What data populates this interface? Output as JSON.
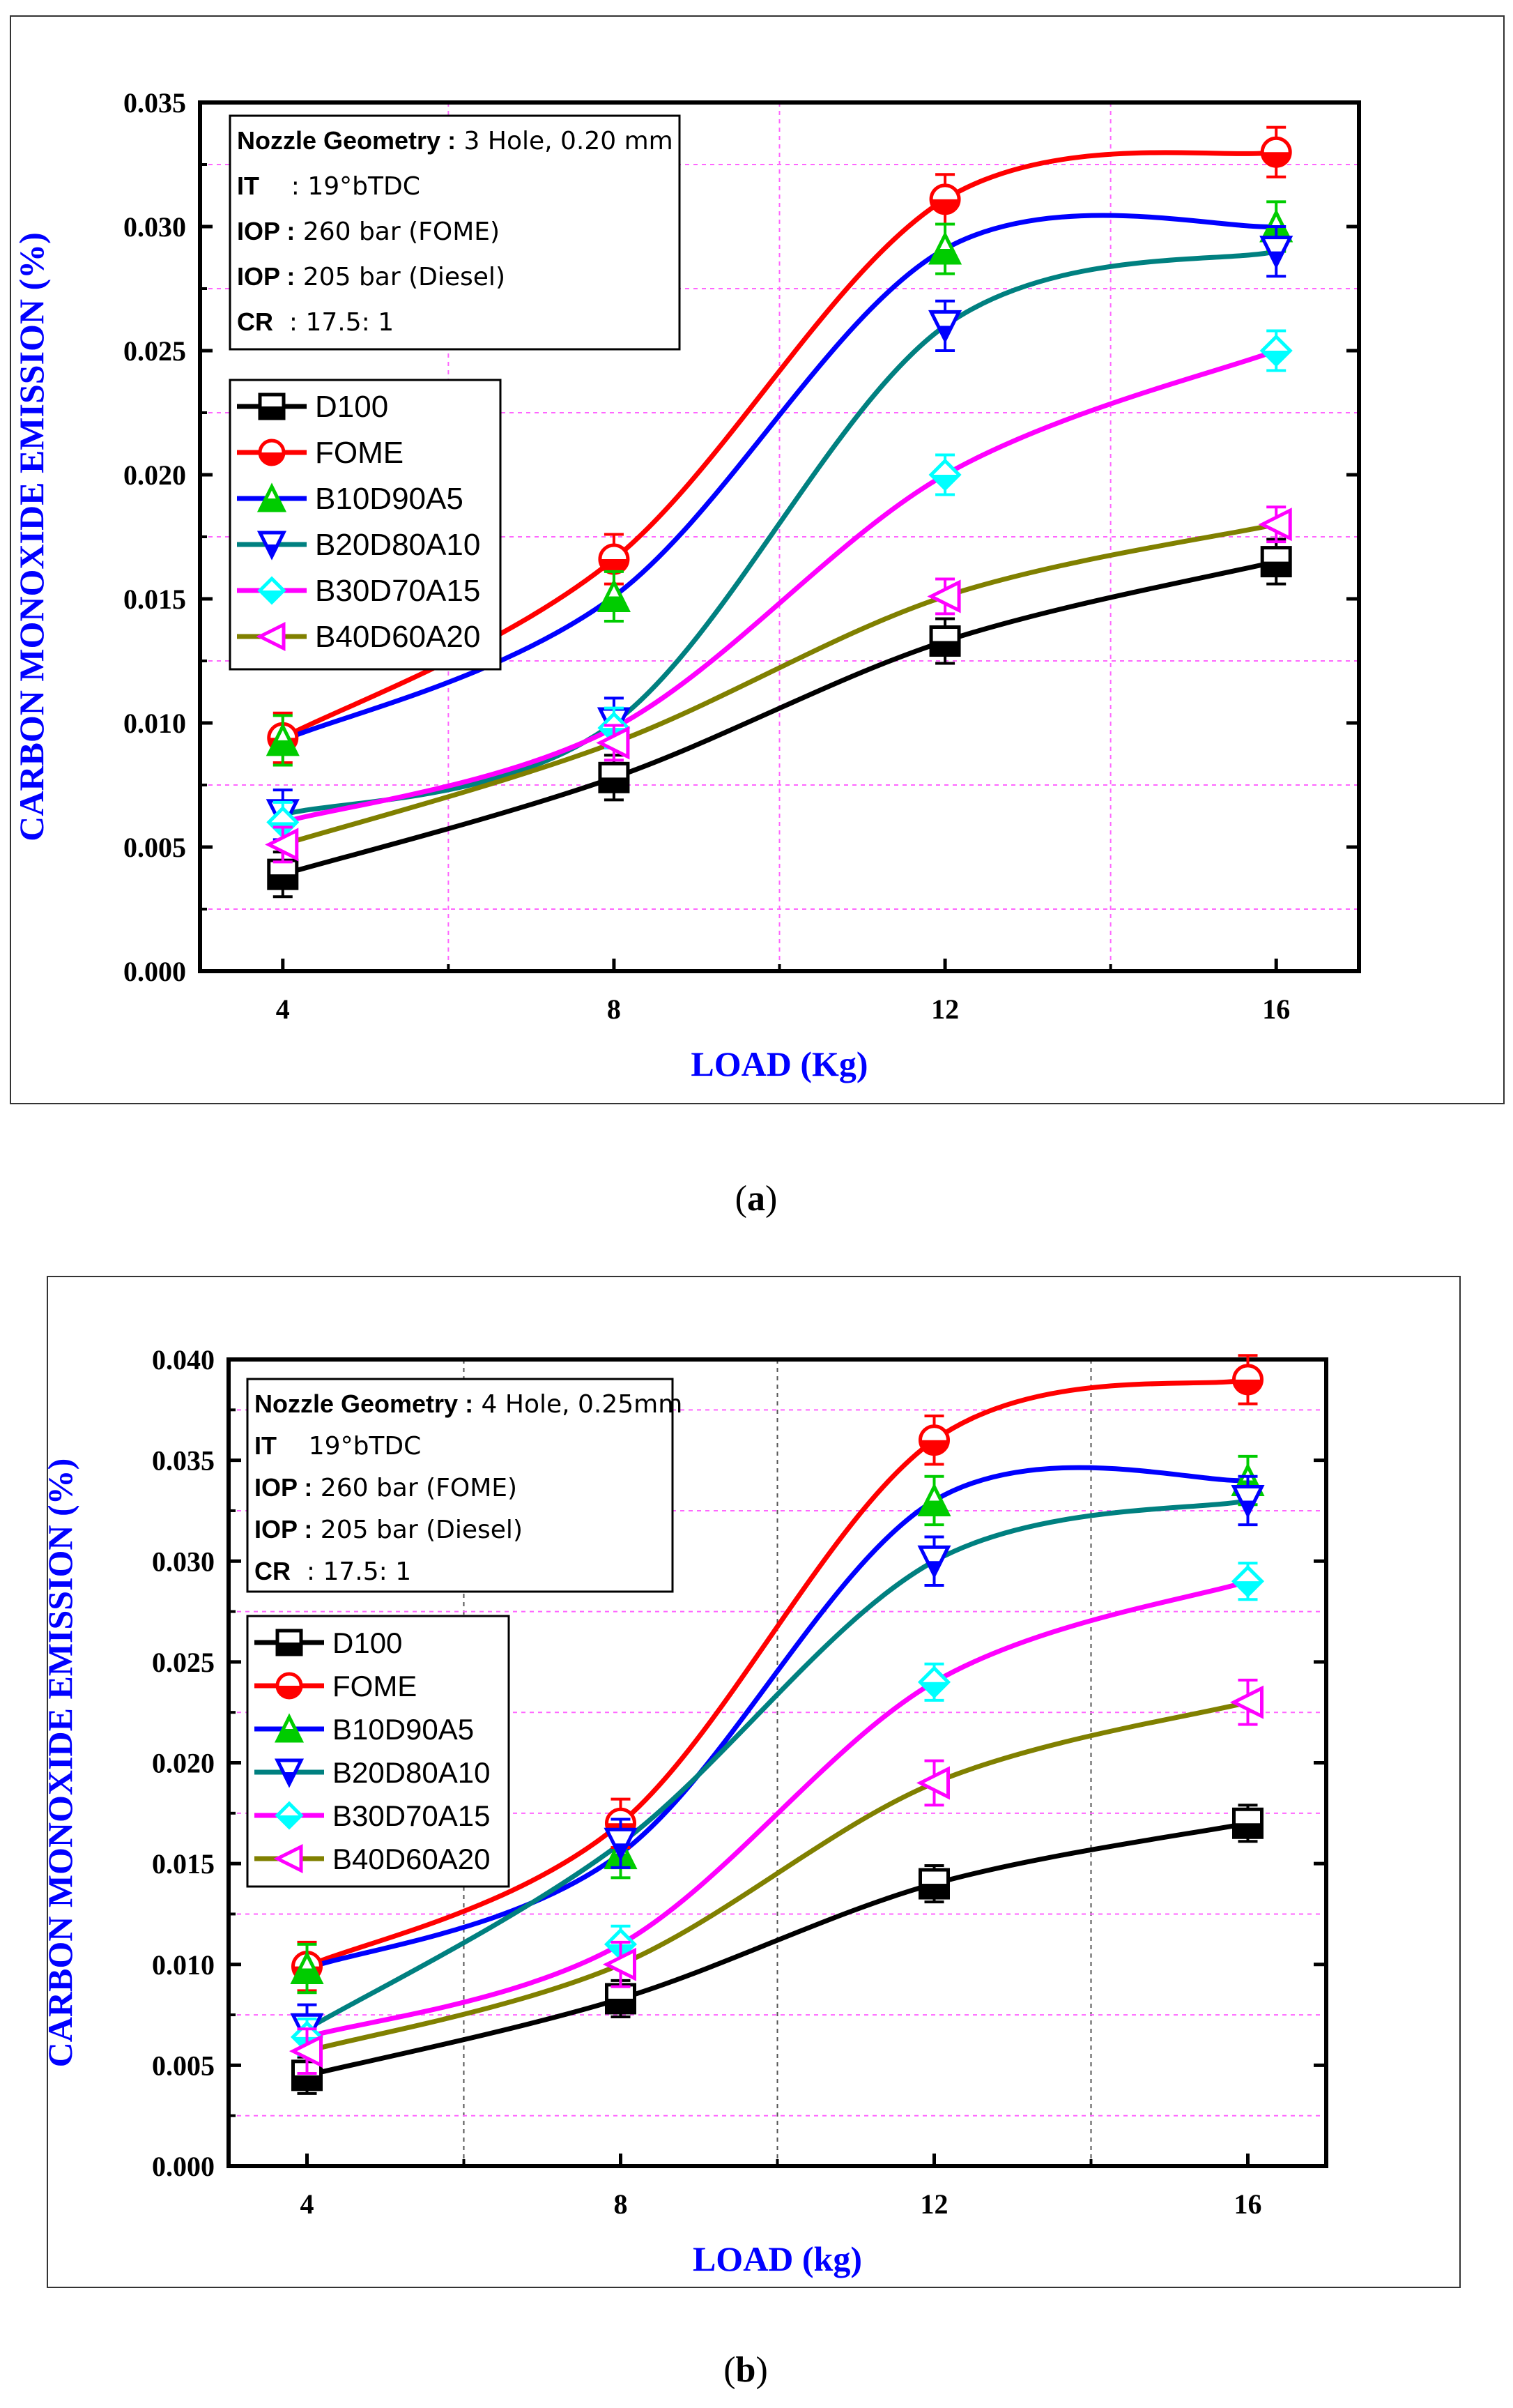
{
  "colors": {
    "D100": "#000000",
    "FOME": "#ff0000",
    "B10D90A5": "#0000ff",
    "B20D80A10": "#008080",
    "B30D70A15": "#ff00ff",
    "B40D60A20": "#808000",
    "B10D90A5_marker": "#00cc00",
    "B20D80A10_marker": "#0000ff",
    "B30D70A15_marker": "#00ffff",
    "B40D60A20_marker": "#ff00ff",
    "axis_label": "#0000ff",
    "grid": "#ff66ff"
  },
  "chart_data": [
    {
      "type": "line",
      "panel": "a",
      "caption_label": "a",
      "xlabel": "LOAD (Kg)",
      "ylabel": "CARBON MONOXIDE EMISSION (%)",
      "x": [
        4,
        8,
        12,
        16
      ],
      "xticks": [
        "4",
        "8",
        "12",
        "16"
      ],
      "xlim": [
        3,
        17
      ],
      "ylim": [
        0,
        0.035
      ],
      "yticks": [
        "0.000",
        "0.005",
        "0.010",
        "0.015",
        "0.020",
        "0.025",
        "0.030",
        "0.035"
      ],
      "info_box": [
        {
          "key": "Nozzle Geometry :",
          "value": " 3 Hole, 0.20 mm"
        },
        {
          "key": "IT",
          "value": "    : 19°bTDC"
        },
        {
          "key": "IOP :",
          "value": " 260 bar (FOME)"
        },
        {
          "key": "IOP :",
          "value": " 205 bar (Diesel)"
        },
        {
          "key": "CR",
          "value": "  : 17.5: 1"
        }
      ],
      "series": [
        {
          "name": "D100",
          "values": [
            0.0039,
            0.0078,
            0.0133,
            0.0165
          ],
          "error": 0.0009,
          "marker": "square"
        },
        {
          "name": "FOME",
          "values": [
            0.0094,
            0.0166,
            0.0311,
            0.033
          ],
          "error": 0.001,
          "marker": "circle"
        },
        {
          "name": "B10D90A5",
          "values": [
            0.0093,
            0.0151,
            0.0291,
            0.03
          ],
          "error": 0.001,
          "marker": "triangle-up"
        },
        {
          "name": "B20D80A10",
          "values": [
            0.0063,
            0.01,
            0.026,
            0.029
          ],
          "error": 0.001,
          "marker": "triangle-down"
        },
        {
          "name": "B30D70A15",
          "values": [
            0.006,
            0.0098,
            0.02,
            0.025
          ],
          "error": 0.0008,
          "marker": "diamond"
        },
        {
          "name": "B40D60A20",
          "values": [
            0.0051,
            0.0092,
            0.0151,
            0.018
          ],
          "error": 0.0007,
          "marker": "triangle-left"
        }
      ]
    },
    {
      "type": "line",
      "panel": "b",
      "caption_label": "b",
      "xlabel": "LOAD (kg)",
      "ylabel": "CARBON MONOXIDE EMISSION (%)",
      "x": [
        4,
        8,
        12,
        16
      ],
      "xticks": [
        "4",
        "8",
        "12",
        "16"
      ],
      "xlim": [
        3,
        17
      ],
      "ylim": [
        0,
        0.04
      ],
      "yticks": [
        "0.000",
        "0.005",
        "0.010",
        "0.015",
        "0.020",
        "0.025",
        "0.030",
        "0.035",
        "0.040"
      ],
      "info_box": [
        {
          "key": "Nozzle Geometry :",
          "value": " 4 Hole, 0.25mm"
        },
        {
          "key": "IT",
          "value": "    19°bTDC"
        },
        {
          "key": "IOP :",
          "value": " 260 bar (FOME)"
        },
        {
          "key": "IOP :",
          "value": " 205 bar (Diesel)"
        },
        {
          "key": "CR",
          "value": "  : 17.5: 1"
        }
      ],
      "series": [
        {
          "name": "D100",
          "values": [
            0.0045,
            0.0083,
            0.014,
            0.017
          ],
          "error": 0.0009,
          "marker": "square"
        },
        {
          "name": "FOME",
          "values": [
            0.0099,
            0.017,
            0.036,
            0.039
          ],
          "error": 0.0012,
          "marker": "circle"
        },
        {
          "name": "B10D90A5",
          "values": [
            0.0098,
            0.0155,
            0.033,
            0.034
          ],
          "error": 0.0012,
          "marker": "triangle-up"
        },
        {
          "name": "B20D80A10",
          "values": [
            0.0068,
            0.016,
            0.03,
            0.033
          ],
          "error": 0.0012,
          "marker": "triangle-down"
        },
        {
          "name": "B30D70A15",
          "values": [
            0.0064,
            0.011,
            0.024,
            0.029
          ],
          "error": 0.0009,
          "marker": "diamond"
        },
        {
          "name": "B40D60A20",
          "values": [
            0.0057,
            0.01,
            0.019,
            0.023
          ],
          "error": 0.0011,
          "marker": "triangle-left"
        }
      ]
    }
  ]
}
